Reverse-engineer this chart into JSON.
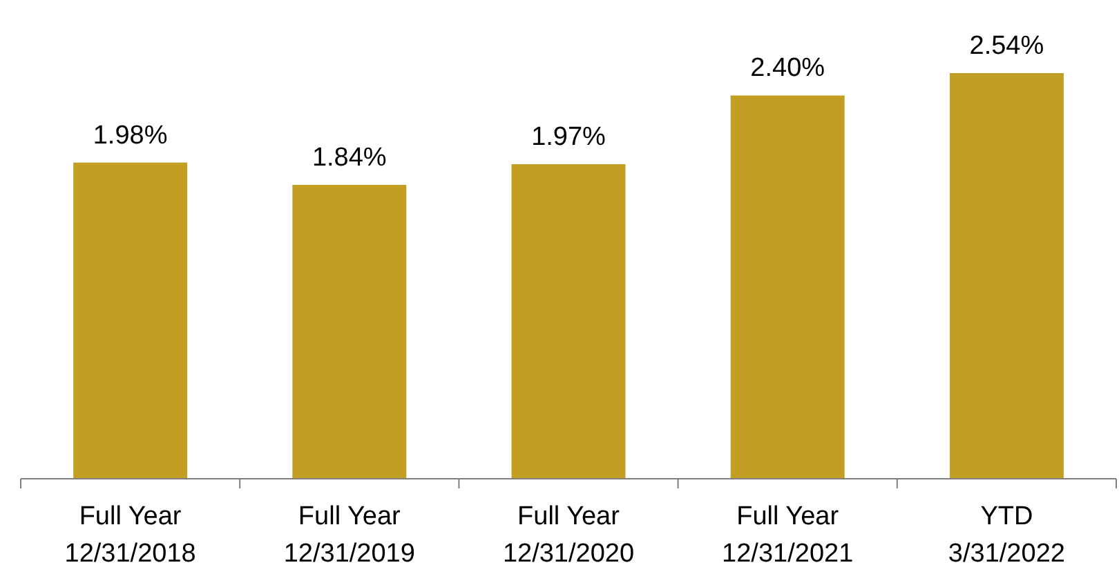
{
  "chart_data": {
    "type": "bar",
    "categories": [
      "Full Year\n12/31/2018",
      "Full Year\n12/31/2019",
      "Full Year\n12/31/2020",
      "Full Year\n12/31/2021",
      "YTD\n3/31/2022"
    ],
    "values": [
      1.98,
      1.84,
      1.97,
      2.4,
      2.54
    ],
    "value_labels": [
      "1.98%",
      "1.84%",
      "1.97%",
      "2.40%",
      "2.54%"
    ],
    "color": "#c29f22",
    "tick_labels": "x"
  }
}
